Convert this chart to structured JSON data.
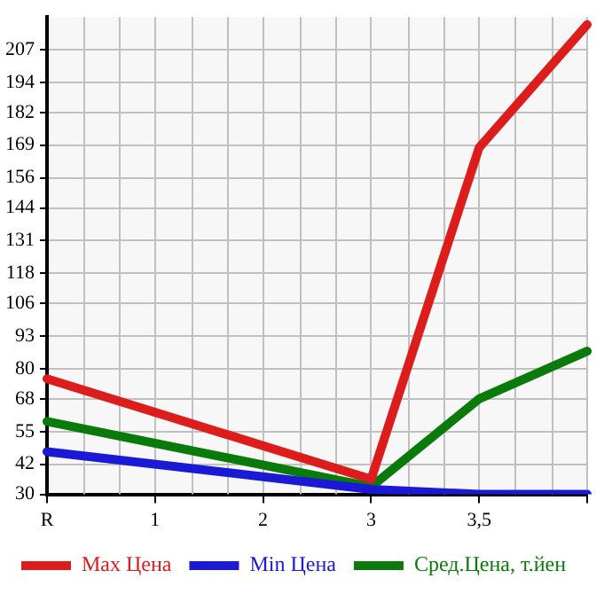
{
  "chart_data": {
    "type": "line",
    "categories": [
      "R",
      "1",
      "2",
      "3",
      "3,5",
      null
    ],
    "series": [
      {
        "name": "Max Цена",
        "color": "#dd1c1c",
        "values": [
          76,
          null,
          null,
          36,
          168,
          217
        ]
      },
      {
        "name": "Min Цена",
        "color": "#1a1ad6",
        "values": [
          47,
          null,
          null,
          32,
          30,
          30
        ]
      },
      {
        "name": "Сред.Цена, т.йен",
        "color": "#0a7a0a",
        "values": [
          59,
          null,
          null,
          33,
          68,
          87
        ]
      }
    ],
    "ylim": [
      30,
      220
    ],
    "yticks": [
      30,
      42,
      55,
      68,
      80,
      93,
      106,
      118,
      131,
      144,
      156,
      169,
      182,
      194,
      207
    ],
    "grid": true,
    "legend": "bottom",
    "marker": "none",
    "line_style": "solid"
  }
}
